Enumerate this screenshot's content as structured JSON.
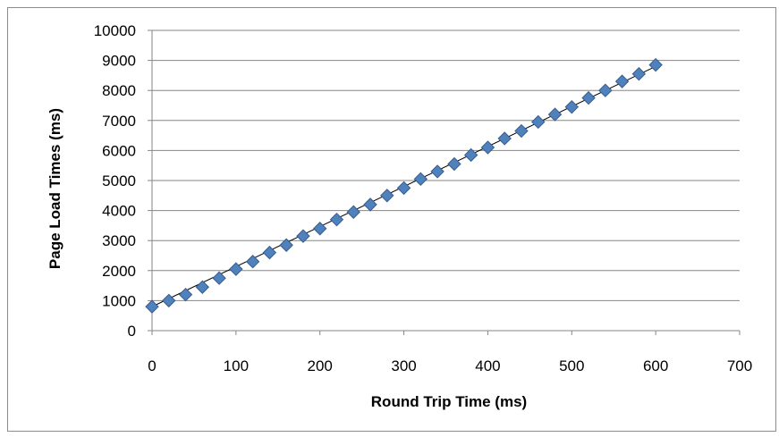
{
  "chart_data": {
    "type": "scatter",
    "title": "",
    "xlabel": "Round Trip Time (ms)",
    "ylabel": "Page Load Times (ms)",
    "xlim": [
      0,
      700
    ],
    "ylim": [
      0,
      10000
    ],
    "x_ticks": [
      "0",
      "100",
      "200",
      "300",
      "400",
      "500",
      "600",
      "700"
    ],
    "y_ticks": [
      "0",
      "1000",
      "2000",
      "3000",
      "4000",
      "5000",
      "6000",
      "7000",
      "8000",
      "9000",
      "10000"
    ],
    "grid": "horizontal",
    "legend": "none",
    "trendline": {
      "type": "linear",
      "x": [
        0,
        600
      ],
      "y": [
        800,
        8800
      ]
    },
    "colors": {
      "marker": "#4f81bd",
      "marker_edge": "#385d8a",
      "trendline": "#000000",
      "grid": "#868686"
    },
    "series": [
      {
        "marker": "diamond",
        "x": [
          0,
          20,
          40,
          60,
          80,
          100,
          120,
          140,
          160,
          180,
          200,
          220,
          240,
          260,
          280,
          300,
          320,
          340,
          360,
          380,
          400,
          420,
          440,
          460,
          480,
          500,
          520,
          540,
          560,
          580,
          600
        ],
        "y": [
          800,
          1000,
          1200,
          1450,
          1750,
          2050,
          2300,
          2600,
          2850,
          3150,
          3400,
          3700,
          3950,
          4200,
          4500,
          4750,
          5050,
          5300,
          5550,
          5850,
          6100,
          6400,
          6650,
          6950,
          7200,
          7450,
          7750,
          8000,
          8300,
          8550,
          8850
        ]
      }
    ]
  }
}
